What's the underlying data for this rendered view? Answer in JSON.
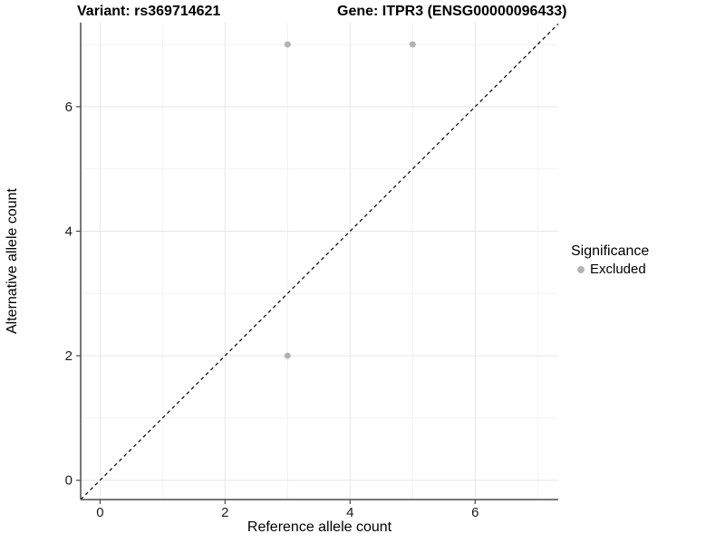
{
  "figure": {
    "title_left": "Variant: rs369714621",
    "title_right": "Gene: ITPR3 (ENSG00000096433)"
  },
  "chart_data": {
    "type": "scatter",
    "title": "Variant: rs369714621 — Gene: ITPR3 (ENSG00000096433)",
    "xlabel": "Reference allele count",
    "ylabel": "Alternative allele count",
    "xlim": [
      -0.31,
      7.33
    ],
    "ylim": [
      -0.31,
      7.35
    ],
    "x_ticks": [
      0,
      2,
      4,
      6
    ],
    "y_ticks": [
      0,
      2,
      4,
      6
    ],
    "x_minor_ticks": [
      1,
      3,
      5,
      7
    ],
    "y_minor_ticks": [
      1,
      3,
      5,
      7
    ],
    "grid": "on",
    "series": [
      {
        "name": "Excluded",
        "points": [
          {
            "x": 3,
            "y": 7
          },
          {
            "x": 5,
            "y": 7
          },
          {
            "x": 3,
            "y": 2
          }
        ]
      }
    ],
    "identity_line": {
      "slope": 1,
      "intercept": 0,
      "style": "dashed"
    },
    "legend": {
      "title": "Significance",
      "position": "right",
      "entries": [
        {
          "label": "Excluded",
          "color": "#b3b3b3"
        }
      ]
    }
  },
  "colors": {
    "point": "#b3b3b3",
    "grid_major": "#e6e6e6",
    "grid_minor": "#f2f2f2",
    "axis_line": "#4a4a4a",
    "tick_label": "#1a1a1a",
    "dashed_line": "#000000",
    "background": "#ffffff"
  }
}
